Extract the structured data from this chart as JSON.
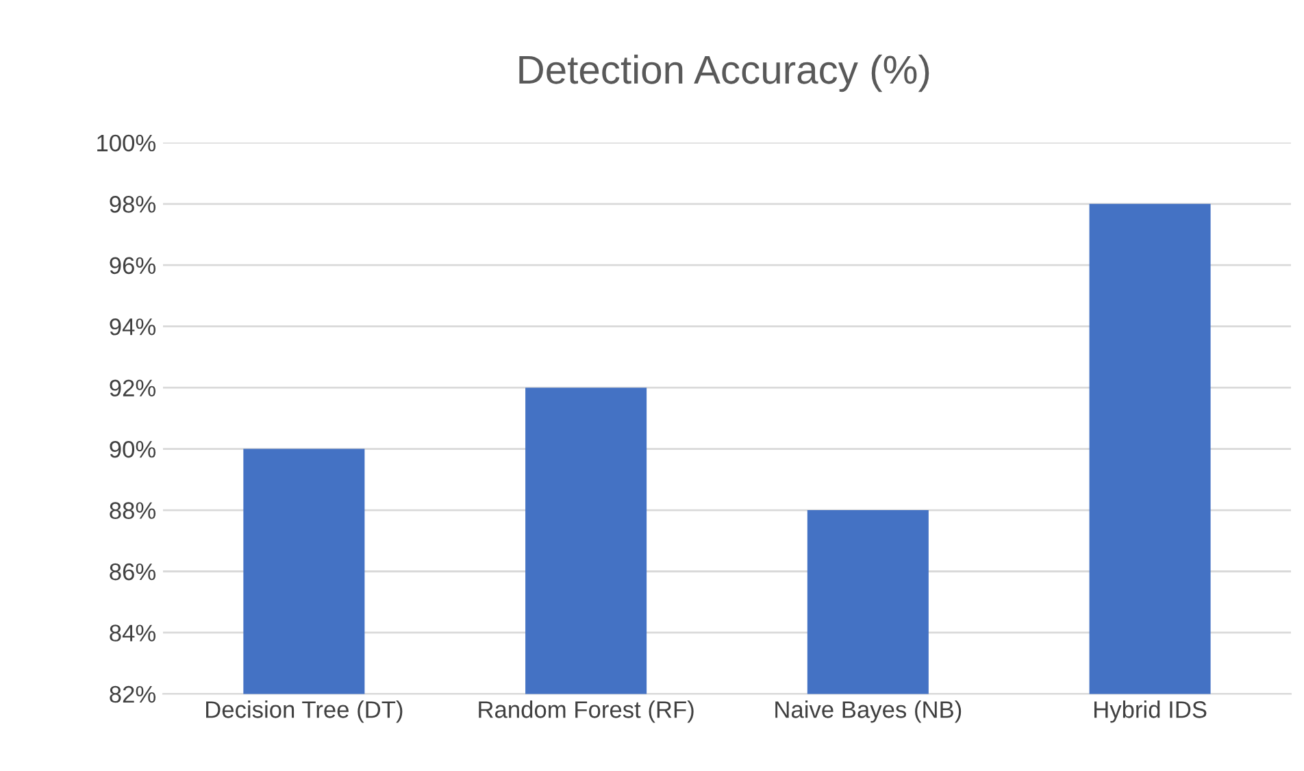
{
  "chart_data": {
    "type": "bar",
    "title": "Detection Accuracy (%)",
    "categories": [
      "Decision Tree (DT)",
      "Random Forest (RF)",
      "Naive Bayes (NB)",
      "Hybrid IDS"
    ],
    "values": [
      90,
      92,
      88,
      98
    ],
    "color": "#4472c4",
    "ylim": [
      82,
      100
    ],
    "yticks": [
      {
        "value": 82,
        "label": "82%"
      },
      {
        "value": 84,
        "label": "84%"
      },
      {
        "value": 86,
        "label": "86%"
      },
      {
        "value": 88,
        "label": "88%"
      },
      {
        "value": 90,
        "label": "90%"
      },
      {
        "value": 92,
        "label": "92%"
      },
      {
        "value": 94,
        "label": "94%"
      },
      {
        "value": 96,
        "label": "96%"
      },
      {
        "value": 98,
        "label": "98%"
      },
      {
        "value": 100,
        "label": "100%"
      }
    ],
    "grid": "y"
  }
}
